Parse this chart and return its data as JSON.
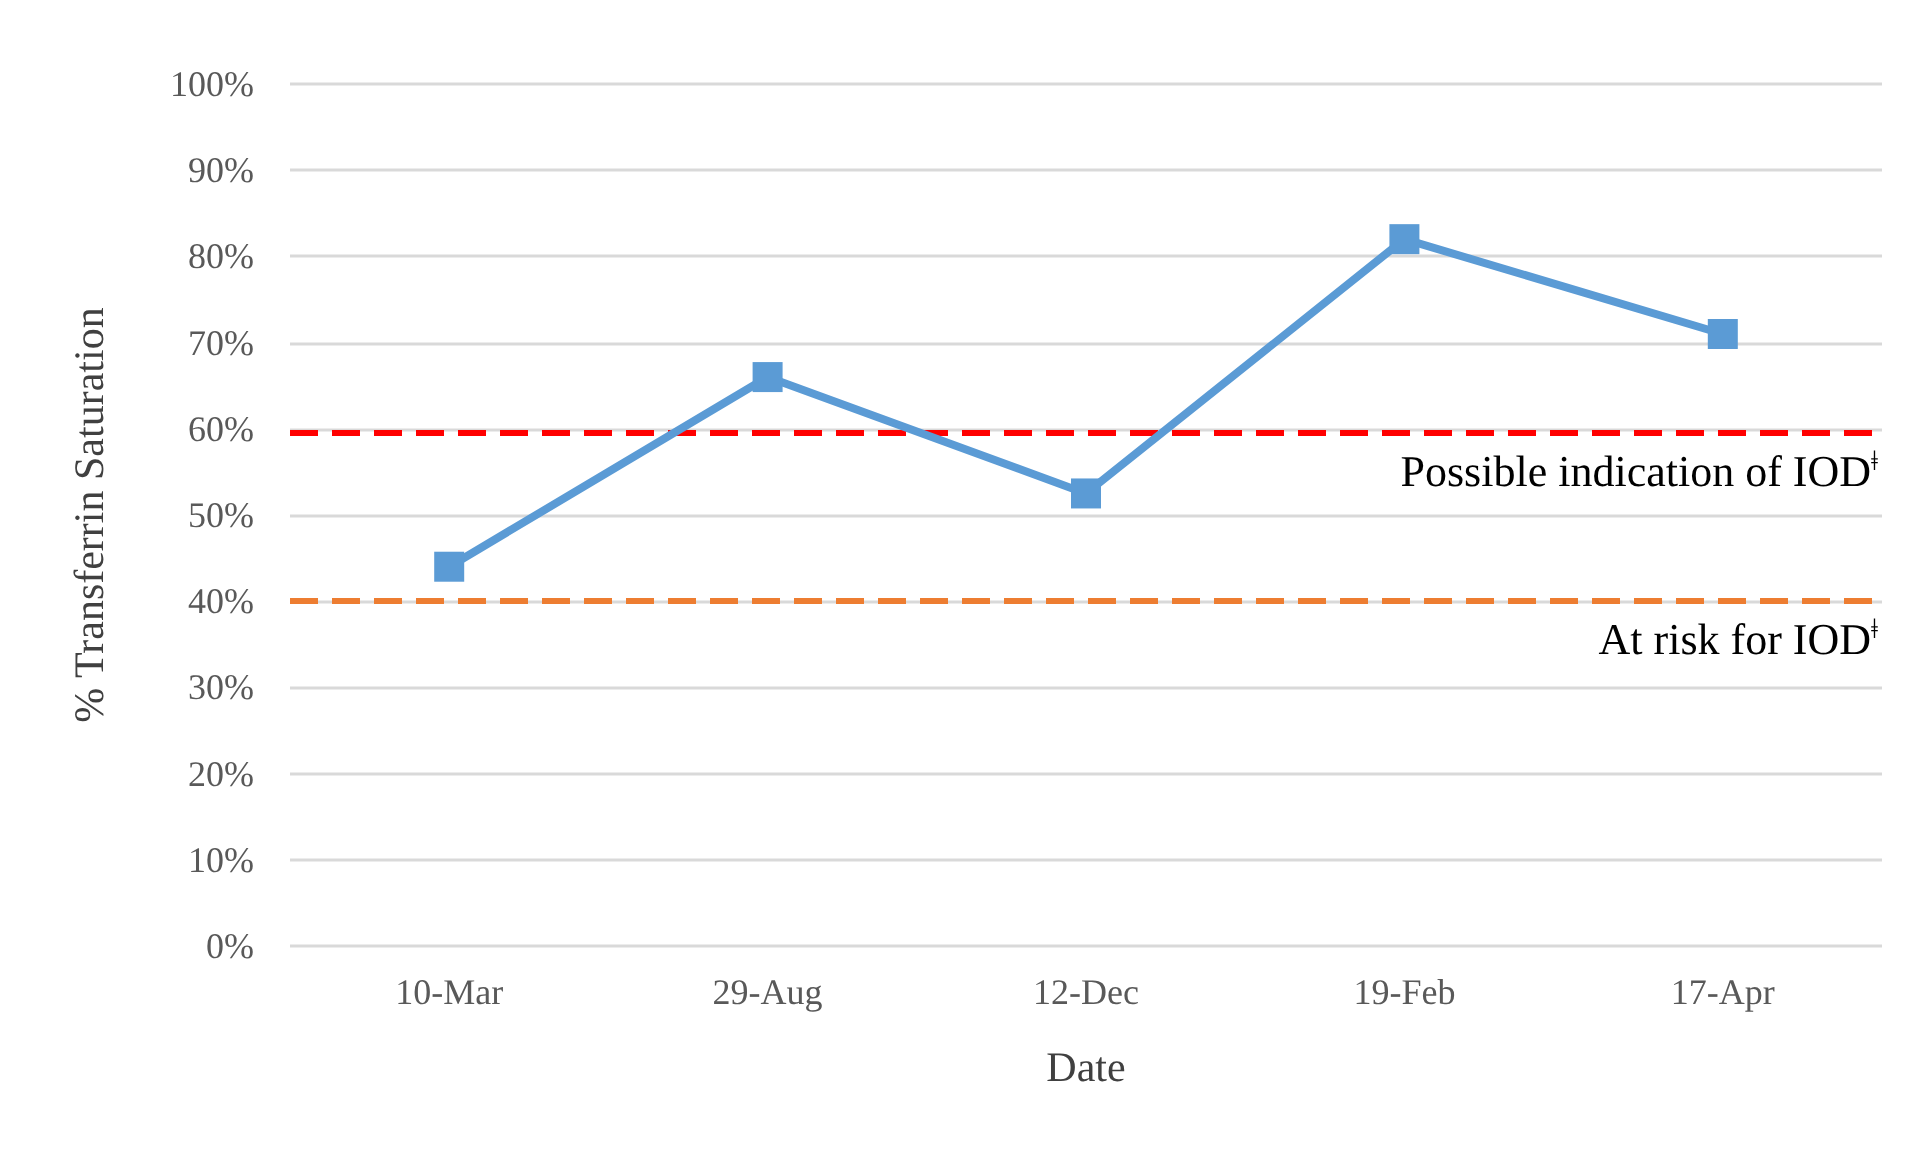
{
  "chart_data": {
    "type": "line",
    "xlabel": "Date",
    "ylabel": "% Transferrin Saturation",
    "categories": [
      "10-Mar",
      "29-Aug",
      "12-Dec",
      "19-Feb",
      "17-Apr"
    ],
    "series": [
      {
        "color": "#5b9bd5",
        "values": [
          44,
          66,
          52.5,
          82,
          71
        ]
      }
    ],
    "marker": "square",
    "line_style": "solid",
    "grid": "y",
    "ylim": [
      0,
      100
    ],
    "yticks": [
      {
        "value": 0,
        "label": "0%"
      },
      {
        "value": 10,
        "label": "10%"
      },
      {
        "value": 20,
        "label": "20%"
      },
      {
        "value": 30,
        "label": "30%"
      },
      {
        "value": 40,
        "label": "40%"
      },
      {
        "value": 50,
        "label": "50%"
      },
      {
        "value": 60,
        "label": "60%"
      },
      {
        "value": 70,
        "label": "70%"
      },
      {
        "value": 80,
        "label": "80%"
      },
      {
        "value": 90,
        "label": "90%"
      },
      {
        "value": 100,
        "label": "100%"
      }
    ],
    "ref_lines": [
      {
        "axis": "y",
        "value": 59.5,
        "label": "Possible indication of IOD$^{ǂ}$",
        "color": "#ff0000",
        "line_style": "dashed"
      },
      {
        "axis": "y",
        "value": 40,
        "label": "At risk for IOD$^{ǂ}$",
        "color": "#ed7d31",
        "line_style": "dashed"
      }
    ]
  }
}
